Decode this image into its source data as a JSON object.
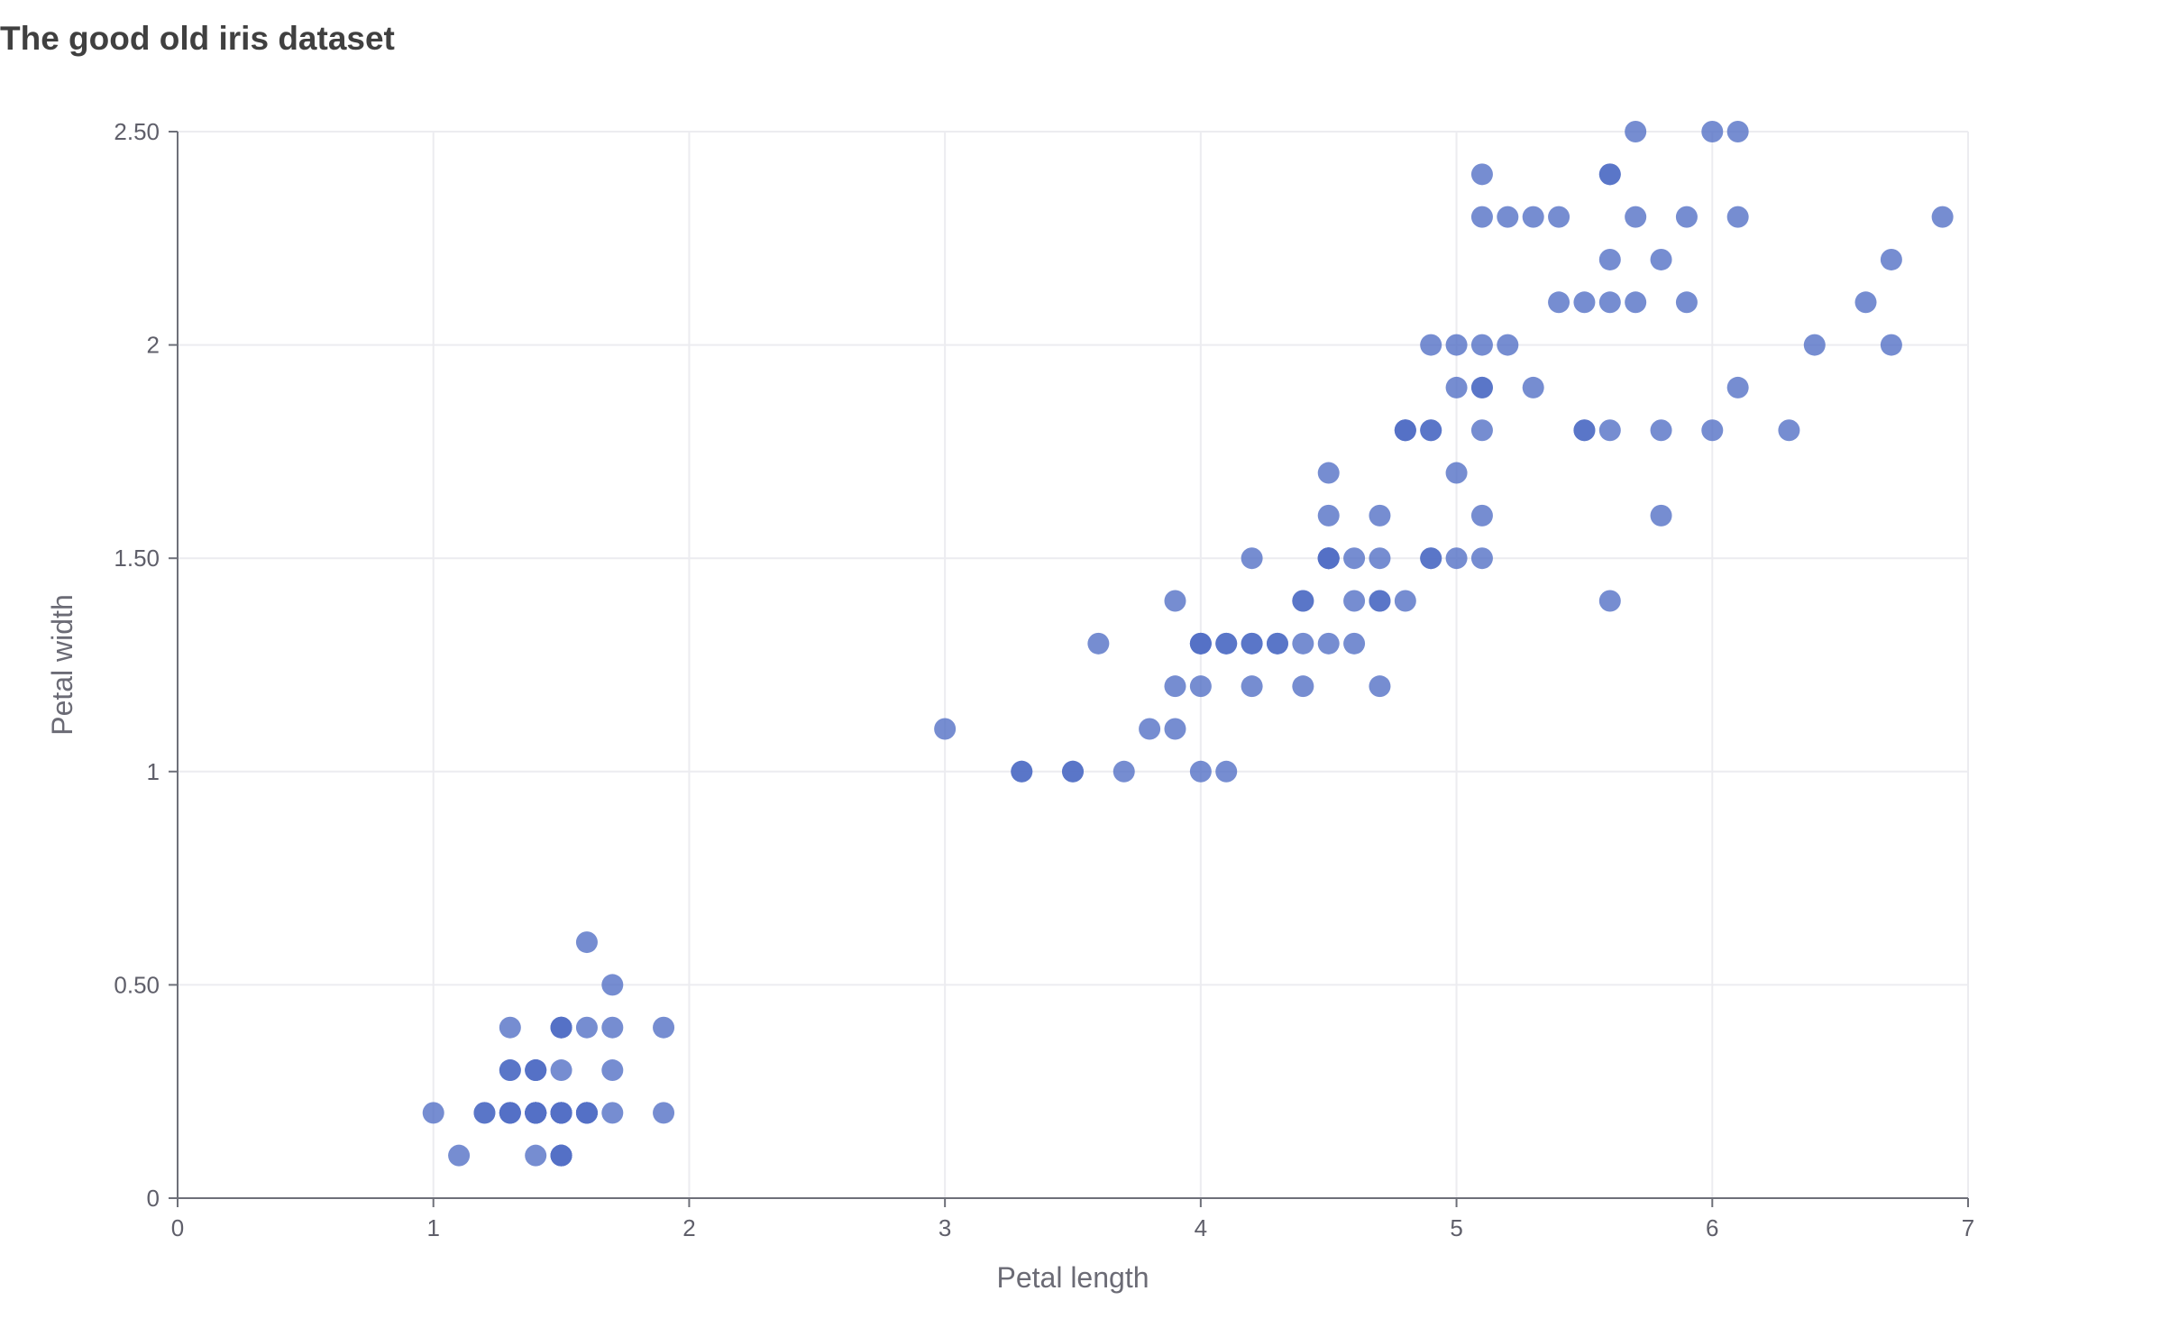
{
  "chart_data": {
    "type": "scatter",
    "title": "The good old iris dataset",
    "xlabel": "Petal length",
    "ylabel": "Petal width",
    "xlim": [
      0,
      7
    ],
    "ylim": [
      0,
      2.5
    ],
    "xticks": [
      0,
      1,
      2,
      3,
      4,
      5,
      6,
      7
    ],
    "xtick_labels": [
      "0",
      "1",
      "2",
      "3",
      "4",
      "5",
      "6",
      "7"
    ],
    "yticks": [
      0,
      0.5,
      1,
      1.5,
      2,
      2.5
    ],
    "ytick_labels": [
      "0",
      "0.50",
      "1",
      "1.50",
      "2",
      "2.50"
    ],
    "grid": true,
    "marker_color": "#5470c6",
    "points": [
      {
        "x": 1.4,
        "y": 0.2
      },
      {
        "x": 1.4,
        "y": 0.2
      },
      {
        "x": 1.3,
        "y": 0.2
      },
      {
        "x": 1.5,
        "y": 0.2
      },
      {
        "x": 1.4,
        "y": 0.2
      },
      {
        "x": 1.7,
        "y": 0.4
      },
      {
        "x": 1.4,
        "y": 0.3
      },
      {
        "x": 1.5,
        "y": 0.2
      },
      {
        "x": 1.4,
        "y": 0.2
      },
      {
        "x": 1.5,
        "y": 0.1
      },
      {
        "x": 1.5,
        "y": 0.2
      },
      {
        "x": 1.6,
        "y": 0.2
      },
      {
        "x": 1.4,
        "y": 0.1
      },
      {
        "x": 1.1,
        "y": 0.1
      },
      {
        "x": 1.2,
        "y": 0.2
      },
      {
        "x": 1.5,
        "y": 0.4
      },
      {
        "x": 1.3,
        "y": 0.4
      },
      {
        "x": 1.4,
        "y": 0.3
      },
      {
        "x": 1.7,
        "y": 0.3
      },
      {
        "x": 1.5,
        "y": 0.3
      },
      {
        "x": 1.7,
        "y": 0.2
      },
      {
        "x": 1.5,
        "y": 0.4
      },
      {
        "x": 1.0,
        "y": 0.2
      },
      {
        "x": 1.7,
        "y": 0.5
      },
      {
        "x": 1.9,
        "y": 0.2
      },
      {
        "x": 1.6,
        "y": 0.2
      },
      {
        "x": 1.6,
        "y": 0.4
      },
      {
        "x": 1.5,
        "y": 0.2
      },
      {
        "x": 1.4,
        "y": 0.2
      },
      {
        "x": 1.6,
        "y": 0.2
      },
      {
        "x": 1.6,
        "y": 0.2
      },
      {
        "x": 1.5,
        "y": 0.4
      },
      {
        "x": 1.5,
        "y": 0.1
      },
      {
        "x": 1.4,
        "y": 0.2
      },
      {
        "x": 1.5,
        "y": 0.1
      },
      {
        "x": 1.2,
        "y": 0.2
      },
      {
        "x": 1.3,
        "y": 0.2
      },
      {
        "x": 1.5,
        "y": 0.1
      },
      {
        "x": 1.3,
        "y": 0.2
      },
      {
        "x": 1.5,
        "y": 0.2
      },
      {
        "x": 1.3,
        "y": 0.3
      },
      {
        "x": 1.3,
        "y": 0.3
      },
      {
        "x": 1.3,
        "y": 0.2
      },
      {
        "x": 1.6,
        "y": 0.6
      },
      {
        "x": 1.9,
        "y": 0.4
      },
      {
        "x": 1.4,
        "y": 0.3
      },
      {
        "x": 1.6,
        "y": 0.2
      },
      {
        "x": 1.4,
        "y": 0.2
      },
      {
        "x": 1.5,
        "y": 0.2
      },
      {
        "x": 1.4,
        "y": 0.2
      },
      {
        "x": 4.7,
        "y": 1.4
      },
      {
        "x": 4.5,
        "y": 1.5
      },
      {
        "x": 4.9,
        "y": 1.5
      },
      {
        "x": 4.0,
        "y": 1.3
      },
      {
        "x": 4.6,
        "y": 1.5
      },
      {
        "x": 4.5,
        "y": 1.3
      },
      {
        "x": 4.7,
        "y": 1.6
      },
      {
        "x": 3.3,
        "y": 1.0
      },
      {
        "x": 4.6,
        "y": 1.3
      },
      {
        "x": 3.9,
        "y": 1.4
      },
      {
        "x": 3.5,
        "y": 1.0
      },
      {
        "x": 4.2,
        "y": 1.5
      },
      {
        "x": 4.0,
        "y": 1.0
      },
      {
        "x": 4.7,
        "y": 1.4
      },
      {
        "x": 3.6,
        "y": 1.3
      },
      {
        "x": 4.4,
        "y": 1.4
      },
      {
        "x": 4.5,
        "y": 1.5
      },
      {
        "x": 4.1,
        "y": 1.0
      },
      {
        "x": 4.5,
        "y": 1.5
      },
      {
        "x": 3.9,
        "y": 1.1
      },
      {
        "x": 4.8,
        "y": 1.8
      },
      {
        "x": 4.0,
        "y": 1.3
      },
      {
        "x": 4.9,
        "y": 1.5
      },
      {
        "x": 4.7,
        "y": 1.2
      },
      {
        "x": 4.3,
        "y": 1.3
      },
      {
        "x": 4.4,
        "y": 1.4
      },
      {
        "x": 4.8,
        "y": 1.4
      },
      {
        "x": 5.0,
        "y": 1.7
      },
      {
        "x": 4.5,
        "y": 1.5
      },
      {
        "x": 3.5,
        "y": 1.0
      },
      {
        "x": 3.8,
        "y": 1.1
      },
      {
        "x": 3.7,
        "y": 1.0
      },
      {
        "x": 3.9,
        "y": 1.2
      },
      {
        "x": 5.1,
        "y": 1.6
      },
      {
        "x": 4.5,
        "y": 1.5
      },
      {
        "x": 4.5,
        "y": 1.6
      },
      {
        "x": 4.7,
        "y": 1.5
      },
      {
        "x": 4.4,
        "y": 1.3
      },
      {
        "x": 4.1,
        "y": 1.3
      },
      {
        "x": 4.0,
        "y": 1.3
      },
      {
        "x": 4.4,
        "y": 1.2
      },
      {
        "x": 4.6,
        "y": 1.4
      },
      {
        "x": 4.0,
        "y": 1.2
      },
      {
        "x": 3.3,
        "y": 1.0
      },
      {
        "x": 4.2,
        "y": 1.3
      },
      {
        "x": 4.2,
        "y": 1.2
      },
      {
        "x": 4.2,
        "y": 1.3
      },
      {
        "x": 4.3,
        "y": 1.3
      },
      {
        "x": 3.0,
        "y": 1.1
      },
      {
        "x": 4.1,
        "y": 1.3
      },
      {
        "x": 6.0,
        "y": 2.5
      },
      {
        "x": 5.1,
        "y": 1.9
      },
      {
        "x": 5.9,
        "y": 2.1
      },
      {
        "x": 5.6,
        "y": 1.8
      },
      {
        "x": 5.8,
        "y": 2.2
      },
      {
        "x": 6.6,
        "y": 2.1
      },
      {
        "x": 4.5,
        "y": 1.7
      },
      {
        "x": 6.3,
        "y": 1.8
      },
      {
        "x": 5.8,
        "y": 1.8
      },
      {
        "x": 6.1,
        "y": 2.5
      },
      {
        "x": 5.1,
        "y": 2.0
      },
      {
        "x": 5.3,
        "y": 1.9
      },
      {
        "x": 5.5,
        "y": 2.1
      },
      {
        "x": 5.0,
        "y": 2.0
      },
      {
        "x": 5.1,
        "y": 2.4
      },
      {
        "x": 5.3,
        "y": 2.3
      },
      {
        "x": 5.5,
        "y": 1.8
      },
      {
        "x": 6.7,
        "y": 2.2
      },
      {
        "x": 6.9,
        "y": 2.3
      },
      {
        "x": 5.0,
        "y": 1.5
      },
      {
        "x": 5.7,
        "y": 2.3
      },
      {
        "x": 4.9,
        "y": 2.0
      },
      {
        "x": 6.7,
        "y": 2.0
      },
      {
        "x": 4.9,
        "y": 1.8
      },
      {
        "x": 5.7,
        "y": 2.1
      },
      {
        "x": 6.0,
        "y": 1.8
      },
      {
        "x": 4.8,
        "y": 1.8
      },
      {
        "x": 4.9,
        "y": 1.8
      },
      {
        "x": 5.6,
        "y": 2.1
      },
      {
        "x": 5.8,
        "y": 1.6
      },
      {
        "x": 6.1,
        "y": 1.9
      },
      {
        "x": 6.4,
        "y": 2.0
      },
      {
        "x": 5.6,
        "y": 2.2
      },
      {
        "x": 5.1,
        "y": 1.5
      },
      {
        "x": 5.6,
        "y": 1.4
      },
      {
        "x": 6.1,
        "y": 2.3
      },
      {
        "x": 5.6,
        "y": 2.4
      },
      {
        "x": 5.5,
        "y": 1.8
      },
      {
        "x": 4.8,
        "y": 1.8
      },
      {
        "x": 5.4,
        "y": 2.1
      },
      {
        "x": 5.6,
        "y": 2.4
      },
      {
        "x": 5.1,
        "y": 2.3
      },
      {
        "x": 5.1,
        "y": 1.9
      },
      {
        "x": 5.9,
        "y": 2.3
      },
      {
        "x": 5.7,
        "y": 2.5
      },
      {
        "x": 5.2,
        "y": 2.3
      },
      {
        "x": 5.0,
        "y": 1.9
      },
      {
        "x": 5.2,
        "y": 2.0
      },
      {
        "x": 5.4,
        "y": 2.3
      },
      {
        "x": 5.1,
        "y": 1.8
      }
    ]
  }
}
